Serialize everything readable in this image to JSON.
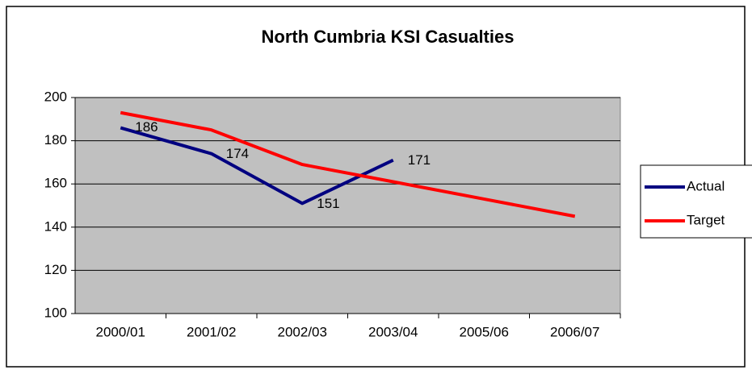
{
  "chart_data": {
    "type": "line",
    "title": "North Cumbria KSI Casualties",
    "categories": [
      "2000/01",
      "2001/02",
      "2002/03",
      "2003/04",
      "2005/06",
      "2006/07"
    ],
    "series": [
      {
        "name": "Actual",
        "color": "#000080",
        "values": [
          186,
          174,
          151,
          171,
          null,
          null
        ]
      },
      {
        "name": "Target",
        "color": "#ff0000",
        "values": [
          193,
          185,
          169,
          161,
          153,
          145
        ]
      }
    ],
    "ylim": [
      100,
      200
    ],
    "yticks": [
      100,
      120,
      140,
      160,
      180,
      200
    ],
    "grid": true,
    "legend": "right"
  }
}
